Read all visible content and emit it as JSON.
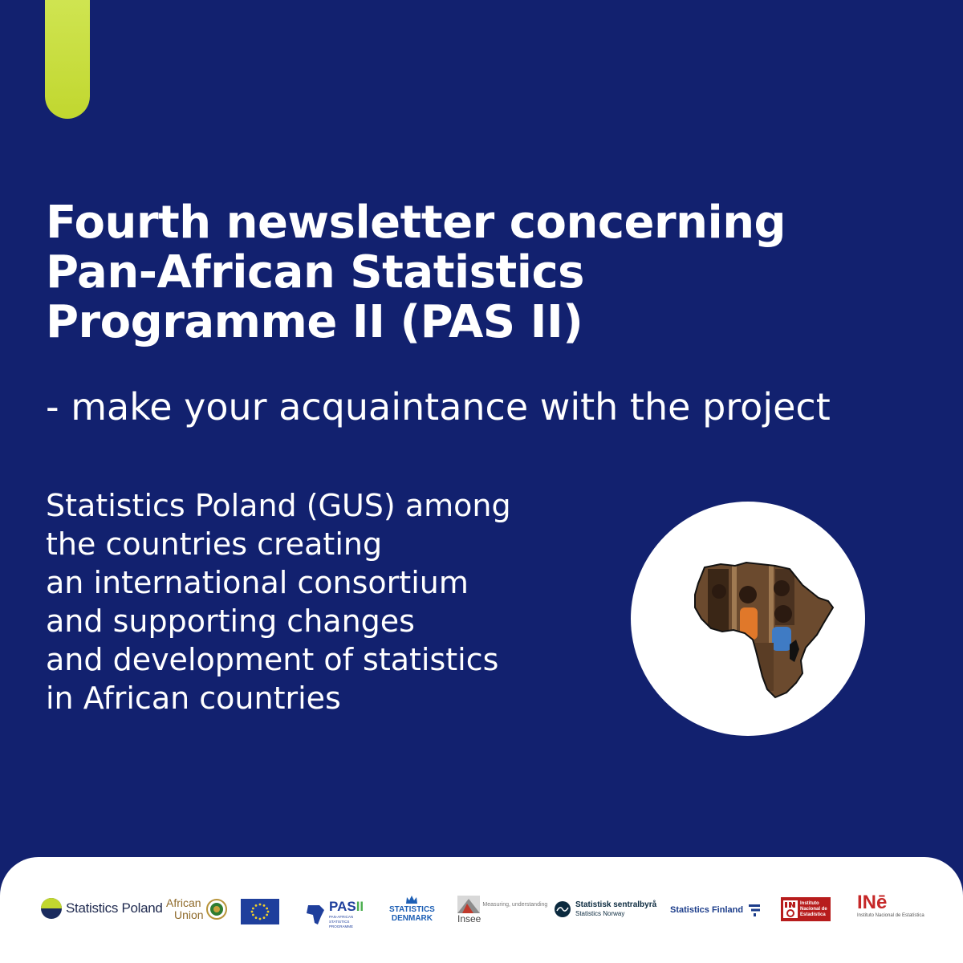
{
  "headline": {
    "lines": [
      "Fourth newsletter concerning",
      "Pan-African Statistics",
      "Programme II (PAS II)"
    ],
    "subtitle": "- make your acquaintance with the project"
  },
  "body": {
    "lines": [
      "Statistics Poland (GUS) among",
      "the countries creating",
      "an international consortium",
      "and supporting changes",
      "and development of statistics",
      "in African countries"
    ]
  },
  "illustration": {
    "icon": "africa-map-icon"
  },
  "colors": {
    "background": "#12216f",
    "accent": "#c8dc3c",
    "footer": "#ffffff"
  },
  "footer": {
    "logos": {
      "statistics_poland": "Statistics Poland",
      "african_union_line1": "African",
      "african_union_line2": "Union",
      "pas_title": "PAS",
      "pas_numeral": "II",
      "pas_caption": "PAN-AFRICAN STATISTICS PROGRAMME",
      "statistics_denmark_line1": "STATISTICS",
      "statistics_denmark_line2": "DENMARK",
      "insee": "Insee",
      "insee_tagline": "Measuring, understanding",
      "ssb_line1": "Statistisk sentralbyrå",
      "ssb_line2": "Statistics Norway",
      "statistics_finland": "Statistics Finland",
      "ine_spain_line1": "Instituto",
      "ine_spain_line2": "Nacional de",
      "ine_spain_line3": "Estadística",
      "ine_portugal": "INē",
      "ine_portugal_caption": "Instituto Nacional de Estatística"
    }
  }
}
